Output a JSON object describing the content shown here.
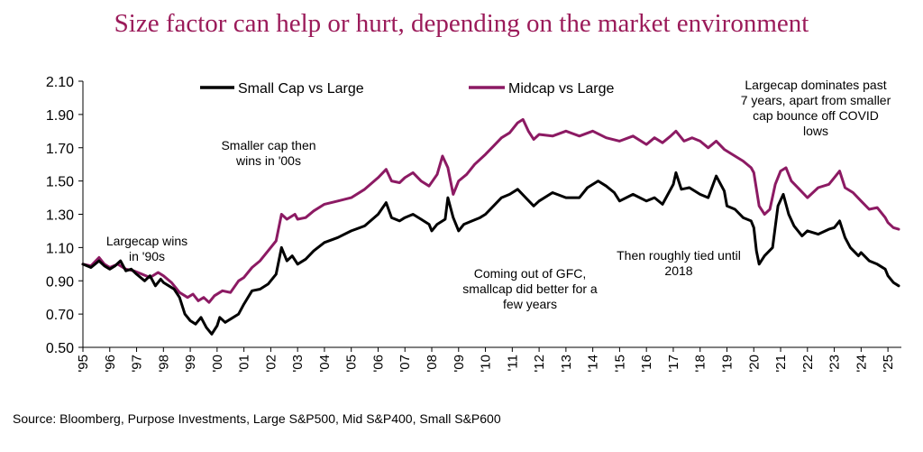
{
  "title": "Size factor can help or hurt, depending on the market environment",
  "source": "Source: Bloomberg, Purpose Investments, Large S&P500, Mid S&P400, Small S&P600",
  "colors": {
    "title": "#9b1b5a",
    "small": "#000000",
    "mid": "#8c1a63"
  },
  "chart_data": {
    "type": "line",
    "title": "Size factor can help or hurt, depending on the market environment",
    "xlabel": "",
    "ylabel": "",
    "xlim": [
      1995,
      2025.5
    ],
    "ylim": [
      0.5,
      2.1
    ],
    "y_ticks": [
      "0.50",
      "0.70",
      "0.90",
      "1.10",
      "1.30",
      "1.50",
      "1.70",
      "1.90",
      "2.10"
    ],
    "x_ticks": [
      {
        "label": "'95",
        "year": 1995
      },
      {
        "label": "'96",
        "year": 1996
      },
      {
        "label": "'97",
        "year": 1997
      },
      {
        "label": "'98",
        "year": 1998
      },
      {
        "label": "'99",
        "year": 1999
      },
      {
        "label": "'00",
        "year": 2000
      },
      {
        "label": "'01",
        "year": 2001
      },
      {
        "label": "'02",
        "year": 2002
      },
      {
        "label": "'03",
        "year": 2003
      },
      {
        "label": "'04",
        "year": 2004
      },
      {
        "label": "'05",
        "year": 2005
      },
      {
        "label": "'06",
        "year": 2006
      },
      {
        "label": "'07",
        "year": 2007
      },
      {
        "label": "'08",
        "year": 2008
      },
      {
        "label": "'09",
        "year": 2009
      },
      {
        "label": "'10",
        "year": 2010
      },
      {
        "label": "'11",
        "year": 2011
      },
      {
        "label": "'12",
        "year": 2012
      },
      {
        "label": "'13",
        "year": 2013
      },
      {
        "label": "'14",
        "year": 2014
      },
      {
        "label": "'15",
        "year": 2015
      },
      {
        "label": "'16",
        "year": 2016
      },
      {
        "label": "'17",
        "year": 2017
      },
      {
        "label": "'18",
        "year": 2018
      },
      {
        "label": "'19",
        "year": 2019
      },
      {
        "label": "'20",
        "year": 2020
      },
      {
        "label": "'21",
        "year": 2021
      },
      {
        "label": "'22",
        "year": 2022
      },
      {
        "label": "'23",
        "year": 2023
      },
      {
        "label": "'24",
        "year": 2024
      },
      {
        "label": "'25",
        "year": 2025
      }
    ],
    "legend": {
      "placement": "top"
    },
    "grid": false,
    "series": [
      {
        "name": "Small Cap vs Large",
        "color": "#000000",
        "points": [
          [
            1995.0,
            1.0
          ],
          [
            1995.3,
            0.98
          ],
          [
            1995.6,
            1.02
          ],
          [
            1995.8,
            0.99
          ],
          [
            1996.0,
            0.97
          ],
          [
            1996.2,
            0.99
          ],
          [
            1996.4,
            1.02
          ],
          [
            1996.6,
            0.96
          ],
          [
            1996.8,
            0.97
          ],
          [
            1997.0,
            0.94
          ],
          [
            1997.3,
            0.9
          ],
          [
            1997.5,
            0.93
          ],
          [
            1997.7,
            0.87
          ],
          [
            1997.9,
            0.91
          ],
          [
            1998.0,
            0.89
          ],
          [
            1998.2,
            0.87
          ],
          [
            1998.4,
            0.85
          ],
          [
            1998.6,
            0.8
          ],
          [
            1998.8,
            0.7
          ],
          [
            1999.0,
            0.66
          ],
          [
            1999.2,
            0.64
          ],
          [
            1999.4,
            0.68
          ],
          [
            1999.6,
            0.62
          ],
          [
            1999.8,
            0.58
          ],
          [
            2000.0,
            0.63
          ],
          [
            2000.1,
            0.68
          ],
          [
            2000.3,
            0.65
          ],
          [
            2000.5,
            0.67
          ],
          [
            2000.8,
            0.7
          ],
          [
            2001.0,
            0.76
          ],
          [
            2001.3,
            0.84
          ],
          [
            2001.6,
            0.85
          ],
          [
            2001.9,
            0.88
          ],
          [
            2002.2,
            0.94
          ],
          [
            2002.4,
            1.1
          ],
          [
            2002.6,
            1.02
          ],
          [
            2002.8,
            1.05
          ],
          [
            2003.0,
            1.0
          ],
          [
            2003.3,
            1.03
          ],
          [
            2003.6,
            1.08
          ],
          [
            2004.0,
            1.13
          ],
          [
            2004.5,
            1.16
          ],
          [
            2005.0,
            1.2
          ],
          [
            2005.5,
            1.23
          ],
          [
            2006.0,
            1.3
          ],
          [
            2006.3,
            1.37
          ],
          [
            2006.5,
            1.28
          ],
          [
            2006.8,
            1.26
          ],
          [
            2007.0,
            1.28
          ],
          [
            2007.3,
            1.3
          ],
          [
            2007.6,
            1.27
          ],
          [
            2007.9,
            1.24
          ],
          [
            2008.0,
            1.2
          ],
          [
            2008.2,
            1.24
          ],
          [
            2008.5,
            1.27
          ],
          [
            2008.6,
            1.4
          ],
          [
            2008.8,
            1.28
          ],
          [
            2009.0,
            1.2
          ],
          [
            2009.2,
            1.24
          ],
          [
            2009.5,
            1.26
          ],
          [
            2009.8,
            1.28
          ],
          [
            2010.0,
            1.3
          ],
          [
            2010.3,
            1.35
          ],
          [
            2010.6,
            1.4
          ],
          [
            2010.9,
            1.42
          ],
          [
            2011.2,
            1.45
          ],
          [
            2011.5,
            1.4
          ],
          [
            2011.8,
            1.35
          ],
          [
            2012.0,
            1.38
          ],
          [
            2012.5,
            1.43
          ],
          [
            2013.0,
            1.4
          ],
          [
            2013.5,
            1.4
          ],
          [
            2013.8,
            1.46
          ],
          [
            2014.2,
            1.5
          ],
          [
            2014.5,
            1.47
          ],
          [
            2014.8,
            1.43
          ],
          [
            2015.0,
            1.38
          ],
          [
            2015.5,
            1.42
          ],
          [
            2016.0,
            1.38
          ],
          [
            2016.3,
            1.4
          ],
          [
            2016.6,
            1.36
          ],
          [
            2016.8,
            1.42
          ],
          [
            2017.0,
            1.48
          ],
          [
            2017.1,
            1.55
          ],
          [
            2017.3,
            1.45
          ],
          [
            2017.6,
            1.46
          ],
          [
            2018.0,
            1.42
          ],
          [
            2018.3,
            1.4
          ],
          [
            2018.6,
            1.53
          ],
          [
            2018.9,
            1.44
          ],
          [
            2019.0,
            1.35
          ],
          [
            2019.3,
            1.33
          ],
          [
            2019.6,
            1.28
          ],
          [
            2019.9,
            1.26
          ],
          [
            2020.0,
            1.22
          ],
          [
            2020.1,
            1.08
          ],
          [
            2020.2,
            1.0
          ],
          [
            2020.4,
            1.05
          ],
          [
            2020.7,
            1.1
          ],
          [
            2020.9,
            1.35
          ],
          [
            2021.1,
            1.42
          ],
          [
            2021.3,
            1.3
          ],
          [
            2021.5,
            1.23
          ],
          [
            2021.8,
            1.17
          ],
          [
            2022.0,
            1.2
          ],
          [
            2022.4,
            1.18
          ],
          [
            2022.8,
            1.21
          ],
          [
            2023.0,
            1.22
          ],
          [
            2023.2,
            1.26
          ],
          [
            2023.4,
            1.16
          ],
          [
            2023.6,
            1.1
          ],
          [
            2023.9,
            1.05
          ],
          [
            2024.0,
            1.07
          ],
          [
            2024.3,
            1.02
          ],
          [
            2024.6,
            1.0
          ],
          [
            2024.9,
            0.97
          ],
          [
            2025.0,
            0.93
          ],
          [
            2025.2,
            0.89
          ],
          [
            2025.4,
            0.87
          ]
        ]
      },
      {
        "name": "Midcap vs Large",
        "color": "#8c1a63",
        "points": [
          [
            1995.0,
            1.0
          ],
          [
            1995.3,
            0.99
          ],
          [
            1995.6,
            1.04
          ],
          [
            1995.8,
            1.0
          ],
          [
            1996.0,
            0.98
          ],
          [
            1996.3,
            1.0
          ],
          [
            1996.6,
            0.97
          ],
          [
            1996.9,
            0.96
          ],
          [
            1997.2,
            0.94
          ],
          [
            1997.5,
            0.92
          ],
          [
            1997.8,
            0.95
          ],
          [
            1998.0,
            0.93
          ],
          [
            1998.3,
            0.89
          ],
          [
            1998.6,
            0.83
          ],
          [
            1998.9,
            0.8
          ],
          [
            1999.1,
            0.82
          ],
          [
            1999.3,
            0.78
          ],
          [
            1999.5,
            0.8
          ],
          [
            1999.7,
            0.77
          ],
          [
            1999.9,
            0.81
          ],
          [
            2000.2,
            0.84
          ],
          [
            2000.5,
            0.83
          ],
          [
            2000.8,
            0.9
          ],
          [
            2001.0,
            0.92
          ],
          [
            2001.3,
            0.98
          ],
          [
            2001.6,
            1.02
          ],
          [
            2001.9,
            1.08
          ],
          [
            2002.2,
            1.14
          ],
          [
            2002.4,
            1.3
          ],
          [
            2002.6,
            1.27
          ],
          [
            2002.9,
            1.3
          ],
          [
            2003.0,
            1.27
          ],
          [
            2003.3,
            1.28
          ],
          [
            2003.6,
            1.32
          ],
          [
            2004.0,
            1.36
          ],
          [
            2004.5,
            1.38
          ],
          [
            2005.0,
            1.4
          ],
          [
            2005.5,
            1.45
          ],
          [
            2006.0,
            1.52
          ],
          [
            2006.3,
            1.57
          ],
          [
            2006.5,
            1.5
          ],
          [
            2006.8,
            1.49
          ],
          [
            2007.0,
            1.52
          ],
          [
            2007.3,
            1.55
          ],
          [
            2007.6,
            1.5
          ],
          [
            2007.9,
            1.47
          ],
          [
            2008.2,
            1.54
          ],
          [
            2008.4,
            1.65
          ],
          [
            2008.6,
            1.58
          ],
          [
            2008.8,
            1.42
          ],
          [
            2009.0,
            1.5
          ],
          [
            2009.3,
            1.54
          ],
          [
            2009.6,
            1.6
          ],
          [
            2010.0,
            1.66
          ],
          [
            2010.3,
            1.71
          ],
          [
            2010.6,
            1.76
          ],
          [
            2010.9,
            1.79
          ],
          [
            2011.2,
            1.85
          ],
          [
            2011.4,
            1.87
          ],
          [
            2011.6,
            1.8
          ],
          [
            2011.8,
            1.75
          ],
          [
            2012.0,
            1.78
          ],
          [
            2012.5,
            1.77
          ],
          [
            2013.0,
            1.8
          ],
          [
            2013.5,
            1.77
          ],
          [
            2014.0,
            1.8
          ],
          [
            2014.5,
            1.76
          ],
          [
            2015.0,
            1.74
          ],
          [
            2015.5,
            1.77
          ],
          [
            2016.0,
            1.72
          ],
          [
            2016.3,
            1.76
          ],
          [
            2016.6,
            1.73
          ],
          [
            2016.9,
            1.77
          ],
          [
            2017.1,
            1.8
          ],
          [
            2017.4,
            1.74
          ],
          [
            2017.7,
            1.76
          ],
          [
            2018.0,
            1.74
          ],
          [
            2018.3,
            1.7
          ],
          [
            2018.6,
            1.74
          ],
          [
            2018.9,
            1.69
          ],
          [
            2019.2,
            1.66
          ],
          [
            2019.6,
            1.62
          ],
          [
            2019.9,
            1.58
          ],
          [
            2020.0,
            1.55
          ],
          [
            2020.2,
            1.35
          ],
          [
            2020.4,
            1.3
          ],
          [
            2020.6,
            1.33
          ],
          [
            2020.8,
            1.48
          ],
          [
            2021.0,
            1.56
          ],
          [
            2021.2,
            1.58
          ],
          [
            2021.4,
            1.5
          ],
          [
            2021.7,
            1.45
          ],
          [
            2022.0,
            1.4
          ],
          [
            2022.4,
            1.46
          ],
          [
            2022.8,
            1.48
          ],
          [
            2023.0,
            1.52
          ],
          [
            2023.2,
            1.56
          ],
          [
            2023.4,
            1.46
          ],
          [
            2023.7,
            1.43
          ],
          [
            2024.0,
            1.38
          ],
          [
            2024.3,
            1.33
          ],
          [
            2024.6,
            1.34
          ],
          [
            2024.9,
            1.28
          ],
          [
            2025.0,
            1.25
          ],
          [
            2025.2,
            1.22
          ],
          [
            2025.4,
            1.21
          ]
        ]
      }
    ],
    "annotations": [
      {
        "id": "a1",
        "lines": [
          "Largecap wins",
          "in '90s"
        ]
      },
      {
        "id": "a2",
        "lines": [
          "Smaller cap then",
          "wins in '00s"
        ]
      },
      {
        "id": "a3",
        "lines": [
          "Coming out of GFC,",
          "smallcap did better for a",
          "few years"
        ]
      },
      {
        "id": "a4",
        "lines": [
          "Then roughly tied until",
          "2018"
        ]
      },
      {
        "id": "a5",
        "lines": [
          "Largecap dominates past",
          "7 years, apart from smaller",
          "cap bounce off COVID",
          "lows"
        ]
      }
    ]
  }
}
